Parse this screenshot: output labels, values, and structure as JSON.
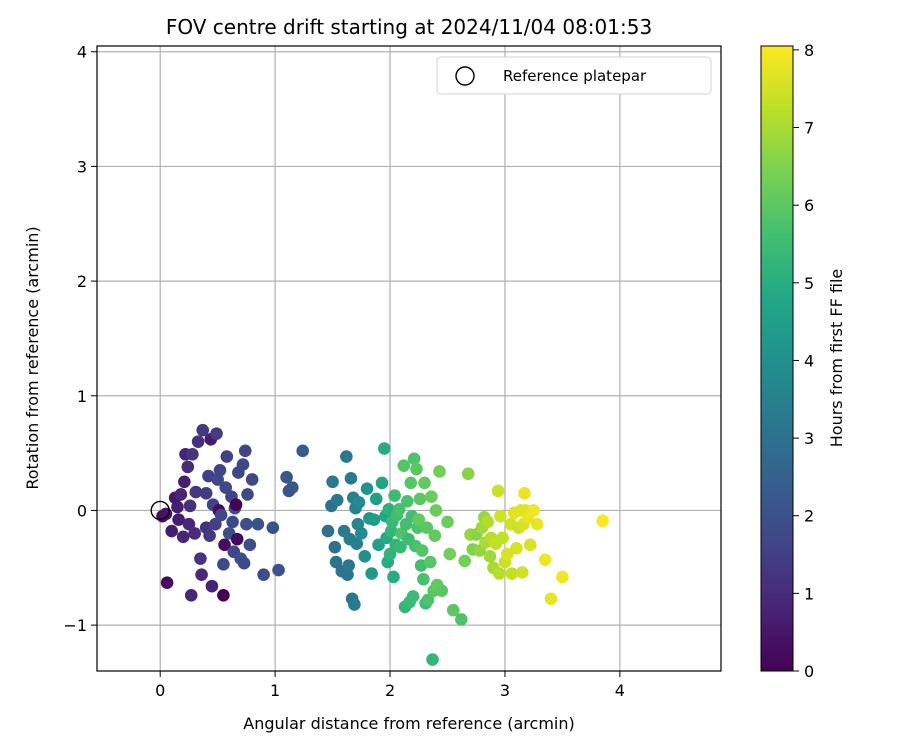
{
  "chart_data": {
    "type": "scatter",
    "title": "FOV centre drift starting at 2024/11/04 08:01:53",
    "xlabel": "Angular distance from reference (arcmin)",
    "ylabel": "Rotation from reference (arcmin)",
    "xlim": [
      -0.55,
      4.88
    ],
    "ylim": [
      -1.4,
      4.05
    ],
    "xticks": [
      0,
      1,
      2,
      3,
      4
    ],
    "yticks": [
      -1,
      0,
      1,
      2,
      3,
      4
    ],
    "xtick_labels": [
      "0",
      "1",
      "2",
      "3",
      "4"
    ],
    "ytick_labels": [
      "−1",
      "0",
      "1",
      "2",
      "3",
      "4"
    ],
    "grid": true,
    "legend": {
      "position": "top-right",
      "entries": [
        {
          "label": "Reference platepar",
          "marker": "open-circle"
        }
      ]
    },
    "reference_point": {
      "x": 0,
      "y": 0
    },
    "colorbar": {
      "label": "Hours from first FF file",
      "range": [
        0,
        8.05
      ],
      "ticks": [
        0,
        1,
        2,
        3,
        4,
        5,
        6,
        7,
        8
      ],
      "tick_labels": [
        "0",
        "1",
        "2",
        "3",
        "4",
        "5",
        "6",
        "7",
        "8"
      ],
      "colormap": "viridis"
    },
    "points": [
      [
        0.02,
        -0.05,
        0.3
      ],
      [
        0.05,
        -0.03,
        0.4
      ],
      [
        0.06,
        -0.63,
        0.2
      ],
      [
        0.1,
        -0.18,
        0.6
      ],
      [
        0.13,
        0.11,
        0.5
      ],
      [
        0.15,
        0.03,
        0.7
      ],
      [
        0.16,
        -0.08,
        0.6
      ],
      [
        0.18,
        0.14,
        0.8
      ],
      [
        0.2,
        -0.23,
        0.9
      ],
      [
        0.21,
        0.25,
        0.7
      ],
      [
        0.22,
        0.49,
        0.8
      ],
      [
        0.24,
        0.38,
        1.0
      ],
      [
        0.25,
        -0.12,
        0.9
      ],
      [
        0.26,
        0.04,
        1.1
      ],
      [
        0.27,
        -0.74,
        0.9
      ],
      [
        0.28,
        0.49,
        1.2
      ],
      [
        0.3,
        -0.2,
        1.0
      ],
      [
        0.31,
        0.16,
        1.3
      ],
      [
        0.33,
        0.6,
        1.1
      ],
      [
        0.35,
        -0.42,
        1.2
      ],
      [
        0.36,
        -0.56,
        1.0
      ],
      [
        0.37,
        0.7,
        1.3
      ],
      [
        0.4,
        0.15,
        1.4
      ],
      [
        0.4,
        -0.15,
        1.2
      ],
      [
        0.42,
        0.3,
        1.5
      ],
      [
        0.43,
        -0.22,
        1.3
      ],
      [
        0.44,
        0.62,
        0.6
      ],
      [
        0.45,
        -0.66,
        0.8
      ],
      [
        0.46,
        0.05,
        1.6
      ],
      [
        0.48,
        -0.12,
        1.5
      ],
      [
        0.49,
        0.67,
        1.4
      ],
      [
        0.5,
        0.27,
        1.7
      ],
      [
        0.51,
        0.0,
        0.2
      ],
      [
        0.52,
        0.35,
        1.6
      ],
      [
        0.53,
        -0.04,
        1.7
      ],
      [
        0.55,
        -0.47,
        1.8
      ],
      [
        0.55,
        -0.74,
        0.1
      ],
      [
        0.56,
        -0.3,
        0.3
      ],
      [
        0.57,
        0.2,
        1.8
      ],
      [
        0.58,
        0.47,
        1.5
      ],
      [
        0.6,
        -0.2,
        1.9
      ],
      [
        0.62,
        0.12,
        1.6
      ],
      [
        0.63,
        -0.1,
        1.8
      ],
      [
        0.64,
        -0.36,
        1.7
      ],
      [
        0.65,
        0.02,
        1.9
      ],
      [
        0.66,
        0.05,
        0.1
      ],
      [
        0.67,
        -0.25,
        0.2
      ],
      [
        0.68,
        0.33,
        1.8
      ],
      [
        0.7,
        -0.42,
        1.9
      ],
      [
        0.72,
        0.4,
        1.7
      ],
      [
        0.73,
        -0.46,
        1.8
      ],
      [
        0.74,
        0.52,
        1.6
      ],
      [
        0.75,
        -0.12,
        1.9
      ],
      [
        0.76,
        0.14,
        1.8
      ],
      [
        0.78,
        -0.3,
        1.9
      ],
      [
        0.8,
        0.27,
        1.8
      ],
      [
        0.85,
        -0.12,
        2.0
      ],
      [
        0.9,
        -0.56,
        1.9
      ],
      [
        0.98,
        -0.15,
        2.0
      ],
      [
        1.03,
        -0.52,
        2.1
      ],
      [
        1.1,
        0.29,
        2.2
      ],
      [
        1.12,
        0.17,
        2.1
      ],
      [
        1.15,
        0.2,
        2.2
      ],
      [
        1.24,
        0.52,
        2.3
      ],
      [
        1.46,
        -0.18,
        3.0
      ],
      [
        1.49,
        0.04,
        3.1
      ],
      [
        1.5,
        0.25,
        3.2
      ],
      [
        1.52,
        -0.32,
        3.0
      ],
      [
        1.53,
        -0.45,
        3.1
      ],
      [
        1.54,
        0.09,
        3.2
      ],
      [
        1.58,
        -0.53,
        3.0
      ],
      [
        1.6,
        -0.18,
        3.3
      ],
      [
        1.62,
        0.47,
        3.2
      ],
      [
        1.63,
        -0.56,
        3.1
      ],
      [
        1.64,
        -0.48,
        3.2
      ],
      [
        1.65,
        -0.25,
        3.4
      ],
      [
        1.66,
        0.28,
        3.3
      ],
      [
        1.67,
        -0.77,
        3.2
      ],
      [
        1.68,
        0.11,
        3.5
      ],
      [
        1.69,
        -0.82,
        3.3
      ],
      [
        1.7,
        0.02,
        3.6
      ],
      [
        1.71,
        -0.29,
        3.4
      ],
      [
        1.72,
        -0.12,
        3.7
      ],
      [
        1.73,
        0.07,
        3.8
      ],
      [
        1.75,
        -0.2,
        3.9
      ],
      [
        1.78,
        -0.4,
        4.0
      ],
      [
        1.8,
        0.19,
        4.1
      ],
      [
        1.82,
        -0.07,
        4.2
      ],
      [
        1.84,
        -0.55,
        4.3
      ],
      [
        1.86,
        -0.08,
        4.4
      ],
      [
        1.88,
        0.1,
        4.5
      ],
      [
        1.9,
        -0.3,
        4.6
      ],
      [
        1.93,
        0.24,
        4.7
      ],
      [
        1.95,
        0.54,
        5.0
      ],
      [
        1.96,
        -0.05,
        4.8
      ],
      [
        1.97,
        -0.24,
        4.9
      ],
      [
        1.98,
        -0.45,
        5.0
      ],
      [
        1.99,
        0.01,
        5.1
      ],
      [
        2.0,
        -0.38,
        5.2
      ],
      [
        2.01,
        -0.18,
        5.3
      ],
      [
        2.02,
        -0.1,
        5.4
      ],
      [
        2.03,
        -0.58,
        5.0
      ],
      [
        2.04,
        0.13,
        5.5
      ],
      [
        2.05,
        -0.3,
        5.2
      ],
      [
        2.06,
        -0.04,
        5.6
      ],
      [
        2.08,
        0.01,
        5.7
      ],
      [
        2.09,
        -0.32,
        5.4
      ],
      [
        2.1,
        -0.2,
        5.8
      ],
      [
        2.12,
        0.39,
        5.9
      ],
      [
        2.13,
        -0.84,
        5.3
      ],
      [
        2.14,
        -0.12,
        5.6
      ],
      [
        2.15,
        0.08,
        5.7
      ],
      [
        2.16,
        -0.25,
        5.5
      ],
      [
        2.17,
        -0.8,
        5.4
      ],
      [
        2.18,
        0.24,
        5.9
      ],
      [
        2.19,
        -0.05,
        5.6
      ],
      [
        2.2,
        -0.75,
        5.5
      ],
      [
        2.21,
        0.45,
        5.8
      ],
      [
        2.22,
        -0.31,
        5.7
      ],
      [
        2.23,
        0.36,
        6.0
      ],
      [
        2.24,
        -0.15,
        5.8
      ],
      [
        2.25,
        -0.08,
        6.1
      ],
      [
        2.26,
        0.1,
        6.0
      ],
      [
        2.27,
        -0.48,
        5.6
      ],
      [
        2.28,
        -0.35,
        5.9
      ],
      [
        2.29,
        -0.6,
        5.7
      ],
      [
        2.3,
        0.24,
        6.1
      ],
      [
        2.31,
        -0.81,
        5.5
      ],
      [
        2.32,
        -0.15,
        6.0
      ],
      [
        2.33,
        -0.78,
        5.8
      ],
      [
        2.35,
        -0.45,
        5.9
      ],
      [
        2.36,
        0.12,
        6.2
      ],
      [
        2.37,
        -1.3,
        5.3
      ],
      [
        2.38,
        -0.7,
        6.0
      ],
      [
        2.39,
        -0.22,
        6.1
      ],
      [
        2.4,
        0.0,
        6.2
      ],
      [
        2.41,
        -0.65,
        6.1
      ],
      [
        2.43,
        0.34,
        6.3
      ],
      [
        2.45,
        -0.7,
        6.0
      ],
      [
        2.5,
        -0.1,
        6.2
      ],
      [
        2.52,
        -0.38,
        6.3
      ],
      [
        2.55,
        -0.87,
        6.0
      ],
      [
        2.62,
        -0.95,
        5.8
      ],
      [
        2.65,
        -0.44,
        6.3
      ],
      [
        2.68,
        0.32,
        6.6
      ],
      [
        2.7,
        -0.21,
        6.8
      ],
      [
        2.72,
        -0.34,
        6.5
      ],
      [
        2.75,
        -0.21,
        6.6
      ],
      [
        2.78,
        -0.35,
        6.7
      ],
      [
        2.8,
        -0.15,
        6.9
      ],
      [
        2.82,
        -0.06,
        6.8
      ],
      [
        2.83,
        -0.28,
        7.0
      ],
      [
        2.85,
        -0.1,
        7.1
      ],
      [
        2.87,
        -0.4,
        6.9
      ],
      [
        2.88,
        -0.24,
        7.2
      ],
      [
        2.9,
        -0.5,
        7.0
      ],
      [
        2.92,
        -0.29,
        7.3
      ],
      [
        2.94,
        0.17,
        7.4
      ],
      [
        2.95,
        -0.55,
        7.2
      ],
      [
        2.96,
        -0.05,
        7.5
      ],
      [
        2.98,
        -0.24,
        7.3
      ],
      [
        3.0,
        -0.45,
        7.4
      ],
      [
        3.02,
        -0.38,
        7.6
      ],
      [
        3.05,
        -0.12,
        7.5
      ],
      [
        3.06,
        -0.55,
        7.3
      ],
      [
        3.08,
        -0.02,
        7.7
      ],
      [
        3.1,
        -0.33,
        7.6
      ],
      [
        3.12,
        -0.15,
        7.4
      ],
      [
        3.14,
        0.0,
        7.7
      ],
      [
        3.15,
        -0.54,
        7.5
      ],
      [
        3.16,
        -0.12,
        7.6
      ],
      [
        3.17,
        0.15,
        7.8
      ],
      [
        3.18,
        0.0,
        7.7
      ],
      [
        3.2,
        -0.06,
        7.8
      ],
      [
        3.22,
        -0.3,
        7.6
      ],
      [
        3.25,
        0.0,
        7.9
      ],
      [
        3.28,
        -0.12,
        7.8
      ],
      [
        3.35,
        -0.43,
        7.9
      ],
      [
        3.4,
        -0.77,
        7.8
      ],
      [
        3.5,
        -0.58,
        7.9
      ],
      [
        3.85,
        -0.09,
        8.0
      ]
    ]
  }
}
